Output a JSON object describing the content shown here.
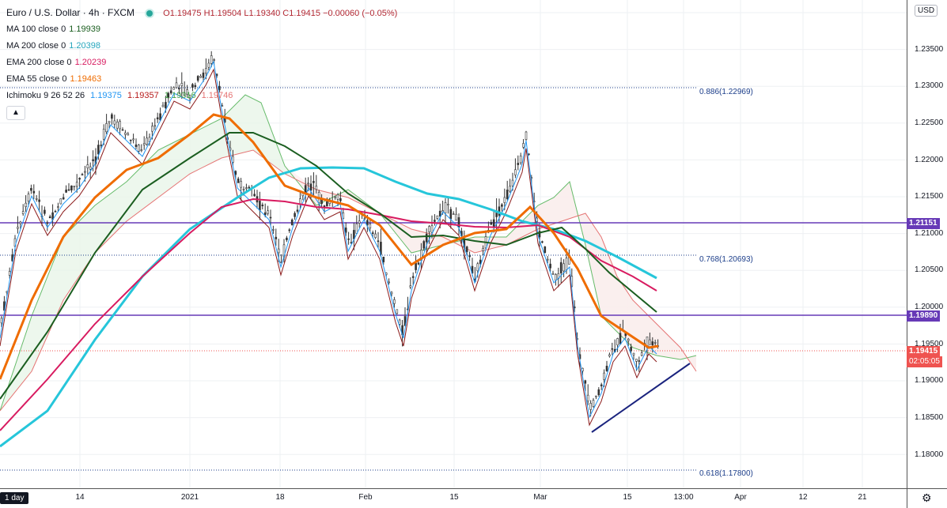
{
  "header": {
    "symbol_title": "Euro / U.S. Dollar · 4h · FXCM",
    "open": "O1.19475",
    "high": "H1.19504",
    "low": "L1.19340",
    "close": "C1.19415",
    "change": "−0.00060 (−0.05%)"
  },
  "indicators": [
    {
      "label": "MA 100 close 0",
      "value": "1.19939",
      "color": "#1b5e20"
    },
    {
      "label": "MA 200 close 0",
      "value": "1.20398",
      "color": "#26c6da"
    },
    {
      "label": "EMA 200 close 0",
      "value": "1.20239",
      "color": "#d81b60"
    },
    {
      "label": "EMA 55 close 0",
      "value": "1.19463",
      "color": "#ef6c00"
    }
  ],
  "ichimoku": {
    "label": "Ichimoku 9 26 52 26",
    "v1": "1.19375",
    "c1": "#2196f3",
    "v2": "1.19357",
    "c2": "#b71c1c",
    "v3": "1.19316",
    "c3": "#43a047",
    "v4": "1.19746",
    "c4": "#e57373"
  },
  "collapse_icon": "chevron-up-icon",
  "currency_button": "USD",
  "price_axis": [
    "1.23500",
    "1.23000",
    "1.22500",
    "1.22000",
    "1.21500",
    "1.21000",
    "1.20500",
    "1.20000",
    "1.19500",
    "1.19000",
    "1.18500",
    "1.18000"
  ],
  "price_axis_top": "1.24000",
  "price_tags": {
    "level1": "1.21151",
    "level2": "1.19890",
    "current": "1.19415",
    "countdown": "02:05:05"
  },
  "fib_labels": [
    "0.886(1.22969)",
    "0.768(1.20693)",
    "0.618(1.17800)"
  ],
  "time_axis": [
    "14",
    "2021",
    "18",
    "Feb",
    "15",
    "Mar",
    "15",
    "13:00",
    "Apr",
    "12",
    "21"
  ],
  "interval": "1 day",
  "settings_icon": "gear-icon",
  "colors": {
    "horizontal_line": "#673ab7",
    "trendline": "#1a237e",
    "up_cloud": "#c8e6c9",
    "down_cloud": "#ffcdd2"
  }
}
